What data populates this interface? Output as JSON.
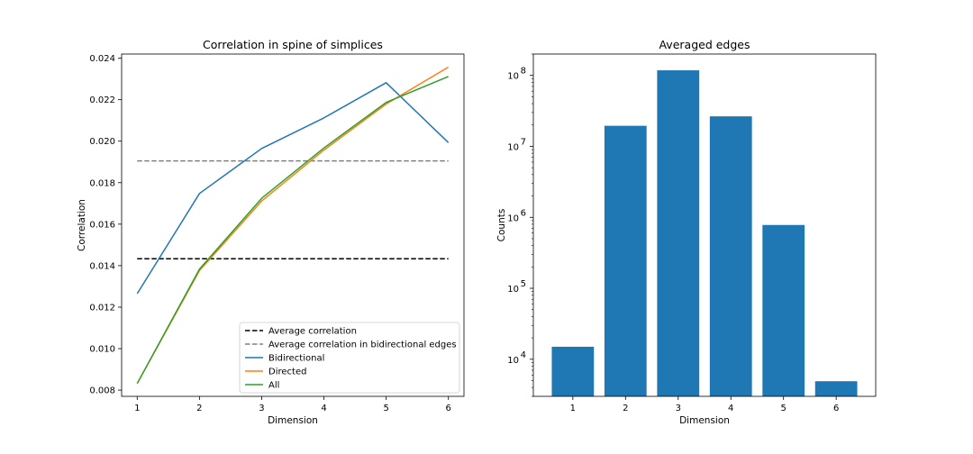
{
  "chart_data": [
    {
      "type": "line",
      "title": "Correlation in spine of simplices",
      "xlabel": "Dimension",
      "ylabel": "Correlation",
      "xlim": [
        0.75,
        6.25
      ],
      "ylim": [
        0.0077,
        0.0242
      ],
      "x": [
        1,
        2,
        3,
        4,
        5,
        6
      ],
      "xticks": [
        "1",
        "2",
        "3",
        "4",
        "5",
        "6"
      ],
      "yticks": [
        0.008,
        0.01,
        0.012,
        0.014,
        0.016,
        0.018,
        0.02,
        0.022,
        0.024
      ],
      "ytick_labels": [
        "0.008",
        "0.010",
        "0.012",
        "0.014",
        "0.016",
        "0.018",
        "0.020",
        "0.022",
        "0.024"
      ],
      "hlines": [
        {
          "name": "Average correlation",
          "value": 0.01433,
          "color": "#000000",
          "dash": "dashed"
        },
        {
          "name": "Average correlation in bidirectional edges",
          "value": 0.01905,
          "color": "#808080",
          "dash": "dashed"
        }
      ],
      "series": [
        {
          "name": "Bidirectional",
          "color": "#1f77b4",
          "values": [
            0.01265,
            0.01748,
            0.01965,
            0.02112,
            0.02282,
            0.01993
          ]
        },
        {
          "name": "Directed",
          "color": "#ff7f0e",
          "values": [
            0.00832,
            0.01376,
            0.01712,
            0.01957,
            0.02179,
            0.02357
          ]
        },
        {
          "name": "All",
          "color": "#2ca02c",
          "values": [
            0.00832,
            0.01383,
            0.01725,
            0.01967,
            0.02187,
            0.02312
          ]
        }
      ],
      "legend": "lower-right"
    },
    {
      "type": "bar",
      "title": "Averaged edges",
      "xlabel": "Dimension",
      "ylabel": "Counts",
      "yscale": "log",
      "ylim": [
        3000,
        200000000
      ],
      "categories": [
        "1",
        "2",
        "3",
        "4",
        "5",
        "6"
      ],
      "values": [
        15000,
        19500000,
        118000000,
        26500000,
        780000,
        4900
      ],
      "color": "#1f77b4",
      "yticks": [
        {
          "value": 10000,
          "base": "10",
          "exp": "4"
        },
        {
          "value": 100000,
          "base": "10",
          "exp": "5"
        },
        {
          "value": 1000000,
          "base": "10",
          "exp": "6"
        },
        {
          "value": 10000000,
          "base": "10",
          "exp": "7"
        },
        {
          "value": 100000000,
          "base": "10",
          "exp": "8"
        }
      ]
    }
  ]
}
